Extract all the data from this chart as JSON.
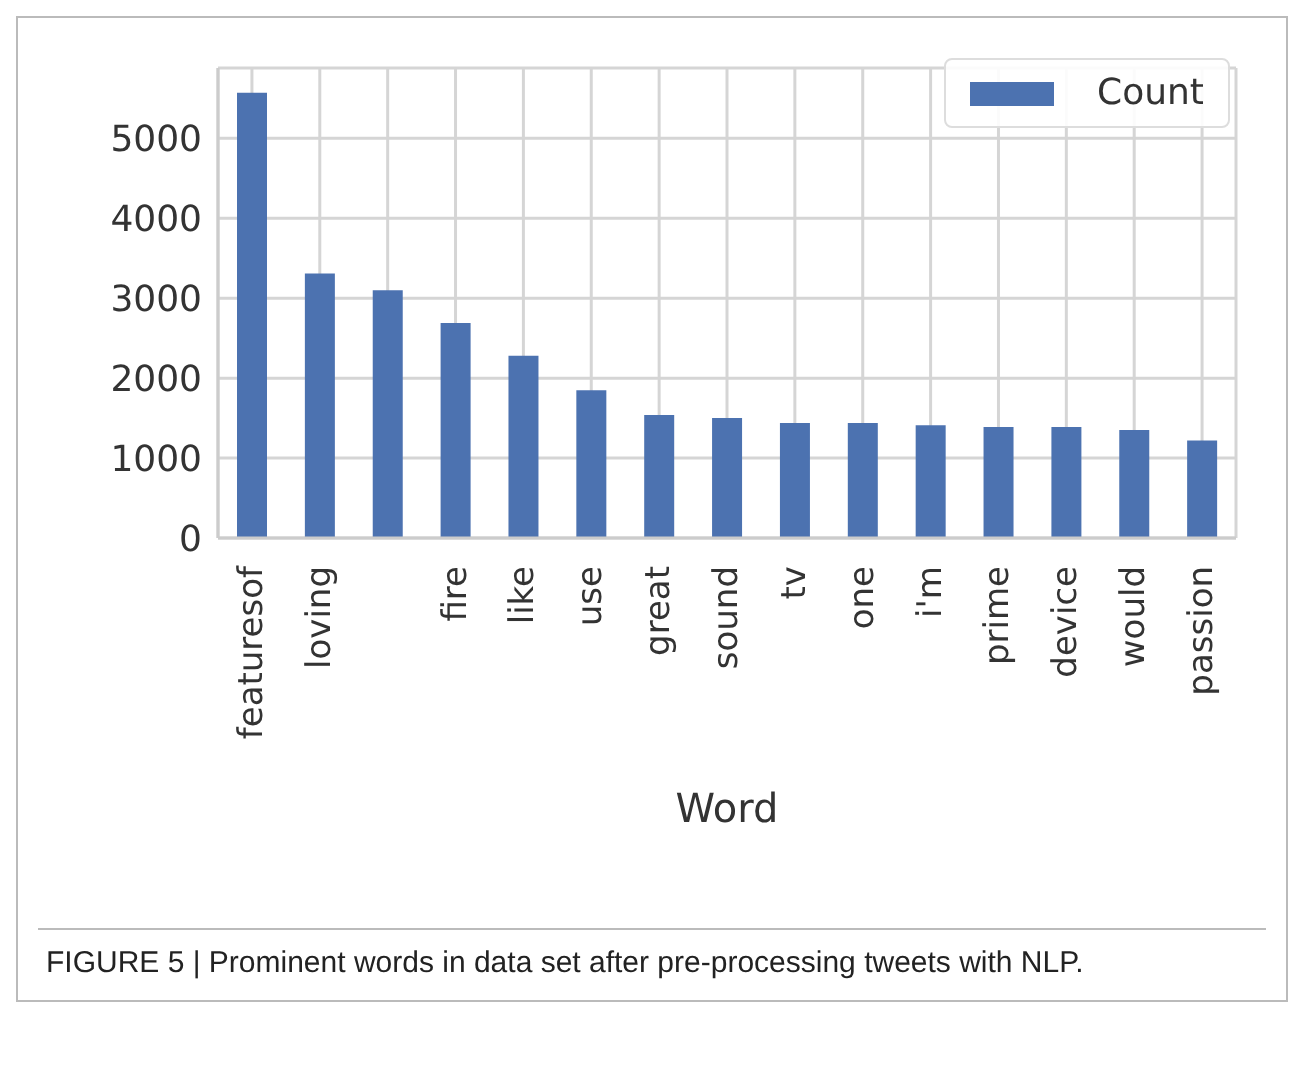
{
  "chart_data": {
    "type": "bar",
    "xlabel": "Word",
    "categories": [
      "featuresof",
      "loving",
      null,
      "fire",
      "like",
      "use",
      "great",
      "sound",
      "tv",
      "one",
      "i'm",
      "prime",
      "device",
      "would",
      "passion"
    ],
    "series": [
      {
        "name": "Count",
        "color": "#4c72b0",
        "values": [
          5570,
          3310,
          3100,
          2690,
          2280,
          1850,
          1540,
          1500,
          1440,
          1440,
          1410,
          1390,
          1390,
          1350,
          1220
        ]
      }
    ],
    "ylim": [
      0,
      5880
    ],
    "yticks": [
      0,
      1000,
      2000,
      3000,
      4000,
      5000
    ],
    "grid": true,
    "legend": "top right",
    "annotations": [
      "FIGURE 5 | Prominent words in data set after pre-processing tweets with NLP."
    ]
  }
}
